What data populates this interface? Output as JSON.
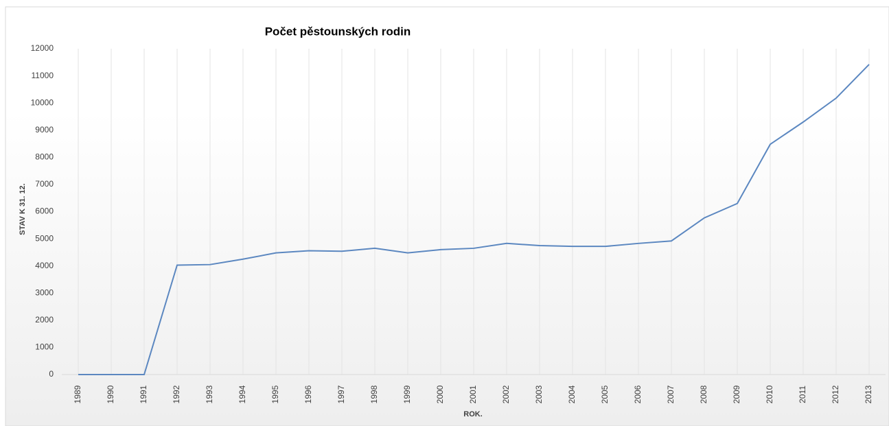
{
  "chart_data": {
    "type": "line",
    "title": "Počet pěstounských rodin",
    "x_label": "ROK.",
    "y_label": "STAV K 31. 12.",
    "categories": [
      "1989",
      "1990",
      "1991",
      "1992",
      "1993",
      "1994",
      "1995",
      "1996",
      "1997",
      "1998",
      "1999",
      "2000",
      "2001",
      "2002",
      "2003",
      "2004",
      "2005",
      "2006",
      "2007",
      "2008",
      "2009",
      "2010",
      "2011",
      "2012",
      "2013"
    ],
    "series": [
      {
        "name": "Počet pěstounských rodin",
        "color": "#5b87c0",
        "values": [
          0,
          0,
          0,
          4030,
          4050,
          4250,
          4480,
          4560,
          4540,
          4650,
          4480,
          4600,
          4650,
          4830,
          4750,
          4720,
          4720,
          4830,
          4920,
          5770,
          6300,
          8480,
          9300,
          10180,
          11420
        ]
      }
    ],
    "ylim": [
      0,
      12000
    ],
    "yticks": [
      0,
      1000,
      2000,
      3000,
      4000,
      5000,
      6000,
      7000,
      8000,
      9000,
      10000,
      11000,
      12000
    ],
    "grid": "x"
  }
}
